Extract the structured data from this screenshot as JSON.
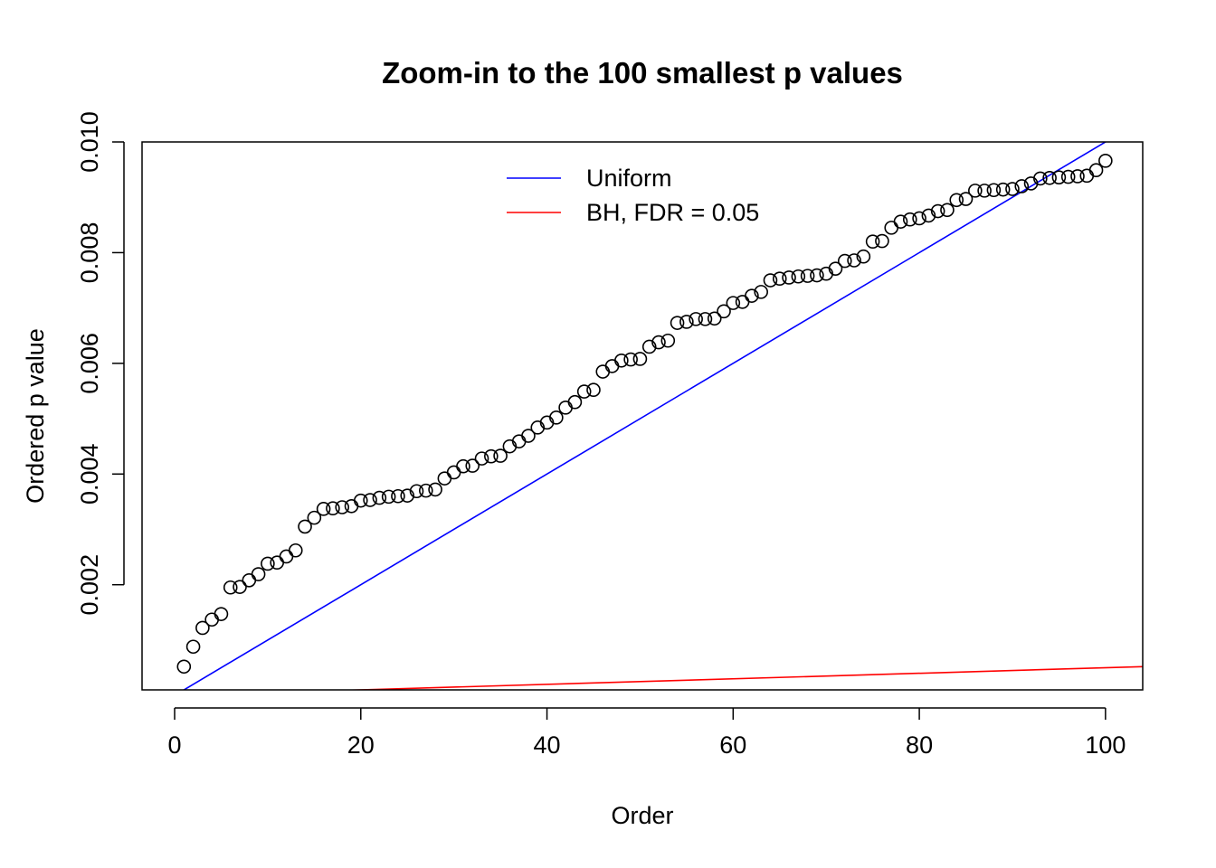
{
  "chart_data": {
    "type": "scatter",
    "title": "Zoom-in to the 100 smallest p values",
    "xlabel": "Order",
    "ylabel": "Ordered p value",
    "xlim": [
      -3.5,
      104
    ],
    "ylim": [
      0.0001,
      0.01
    ],
    "xticks": [
      0,
      20,
      40,
      60,
      80,
      100
    ],
    "xtick_labels": [
      "0",
      "20",
      "40",
      "60",
      "80",
      "100"
    ],
    "yticks": [
      0.002,
      0.004,
      0.006,
      0.008,
      0.01
    ],
    "ytick_labels": [
      "0.002",
      "0.004",
      "0.006",
      "0.008",
      "0.010"
    ],
    "grid": false,
    "legend": {
      "placement": "top-center",
      "entries": [
        {
          "label": "Uniform",
          "color": "#0000ff"
        },
        {
          "label": "BH, FDR = 0.05",
          "color": "#ff0000"
        }
      ]
    },
    "series": [
      {
        "name": "Ordered p values",
        "kind": "points",
        "marker": "open-circle",
        "color": "#000000",
        "x": [
          1,
          2,
          3,
          4,
          5,
          6,
          7,
          8,
          9,
          10,
          11,
          12,
          13,
          14,
          15,
          16,
          17,
          18,
          19,
          20,
          21,
          22,
          23,
          24,
          25,
          26,
          27,
          28,
          29,
          30,
          31,
          32,
          33,
          34,
          35,
          36,
          37,
          38,
          39,
          40,
          41,
          42,
          43,
          44,
          45,
          46,
          47,
          48,
          49,
          50,
          51,
          52,
          53,
          54,
          55,
          56,
          57,
          58,
          59,
          60,
          61,
          62,
          63,
          64,
          65,
          66,
          67,
          68,
          69,
          70,
          71,
          72,
          73,
          74,
          75,
          76,
          77,
          78,
          79,
          80,
          81,
          82,
          83,
          84,
          85,
          86,
          87,
          88,
          89,
          90,
          91,
          92,
          93,
          94,
          95,
          96,
          97,
          98,
          99,
          100
        ],
        "y": [
          0.00052,
          0.00088,
          0.00122,
          0.00137,
          0.00147,
          0.00195,
          0.00196,
          0.00208,
          0.00219,
          0.00238,
          0.0024,
          0.00251,
          0.00262,
          0.00305,
          0.00321,
          0.00337,
          0.00338,
          0.0034,
          0.00342,
          0.00352,
          0.00353,
          0.00357,
          0.00359,
          0.0036,
          0.00361,
          0.00369,
          0.0037,
          0.00372,
          0.00392,
          0.00403,
          0.00414,
          0.00415,
          0.00428,
          0.00432,
          0.00433,
          0.0045,
          0.00459,
          0.00469,
          0.00484,
          0.00493,
          0.00502,
          0.0052,
          0.0053,
          0.00549,
          0.00552,
          0.00585,
          0.00595,
          0.00605,
          0.00607,
          0.00608,
          0.0063,
          0.00638,
          0.00641,
          0.00673,
          0.00675,
          0.0068,
          0.0068,
          0.00681,
          0.00694,
          0.00709,
          0.00711,
          0.00722,
          0.00729,
          0.0075,
          0.00753,
          0.00755,
          0.00757,
          0.00758,
          0.00759,
          0.00762,
          0.00771,
          0.00785,
          0.00786,
          0.00793,
          0.0082,
          0.00821,
          0.00845,
          0.00856,
          0.0086,
          0.00862,
          0.00867,
          0.00875,
          0.00877,
          0.00895,
          0.00897,
          0.00912,
          0.00912,
          0.00913,
          0.00914,
          0.00915,
          0.0092,
          0.00925,
          0.00934,
          0.00935,
          0.00936,
          0.00937,
          0.00938,
          0.00939,
          0.00949,
          0.00966
        ]
      },
      {
        "name": "Uniform",
        "kind": "line",
        "color": "#0000ff",
        "x": [
          0,
          104
        ],
        "y": [
          0,
          0.0104
        ]
      },
      {
        "name": "BH, FDR = 0.05",
        "kind": "line",
        "color": "#ff0000",
        "x": [
          0,
          104
        ],
        "y": [
          0,
          0.00052
        ]
      }
    ]
  }
}
